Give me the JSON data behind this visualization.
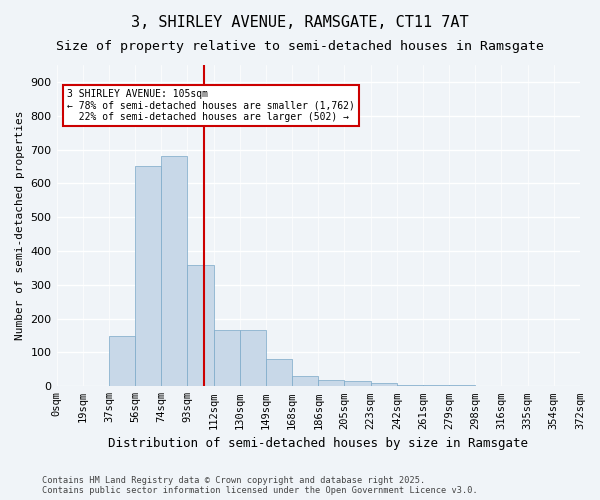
{
  "title1": "3, SHIRLEY AVENUE, RAMSGATE, CT11 7AT",
  "title2": "Size of property relative to semi-detached houses in Ramsgate",
  "xlabel": "Distribution of semi-detached houses by size in Ramsgate",
  "ylabel": "Number of semi-detached properties",
  "footnote": "Contains HM Land Registry data © Crown copyright and database right 2025.\nContains public sector information licensed under the Open Government Licence v3.0.",
  "bin_labels": [
    "0sqm",
    "19sqm",
    "37sqm",
    "56sqm",
    "74sqm",
    "93sqm",
    "112sqm",
    "130sqm",
    "149sqm",
    "168sqm",
    "186sqm",
    "205sqm",
    "223sqm",
    "242sqm",
    "261sqm",
    "279sqm",
    "298sqm",
    "316sqm",
    "335sqm",
    "354sqm",
    "372sqm"
  ],
  "bar_heights": [
    0,
    2,
    150,
    650,
    680,
    360,
    165,
    165,
    80,
    30,
    20,
    15,
    10,
    5,
    5,
    3,
    2,
    1,
    0,
    0
  ],
  "bar_color": "#c8d8e8",
  "bar_edge_color": "#7aa8c8",
  "property_line_x": 5.63,
  "property_line_color": "#cc0000",
  "annotation_text": "3 SHIRLEY AVENUE: 105sqm\n← 78% of semi-detached houses are smaller (1,762)\n  22% of semi-detached houses are larger (502) →",
  "annotation_box_color": "#ffffff",
  "annotation_box_edge": "#cc0000",
  "ylim": [
    0,
    950
  ],
  "yticks": [
    0,
    100,
    200,
    300,
    400,
    500,
    600,
    700,
    800,
    900
  ],
  "background_color": "#f0f4f8",
  "grid_color": "#ffffff",
  "title1_fontsize": 11,
  "title2_fontsize": 9.5,
  "axis_fontsize": 8,
  "tick_fontsize": 7.5
}
